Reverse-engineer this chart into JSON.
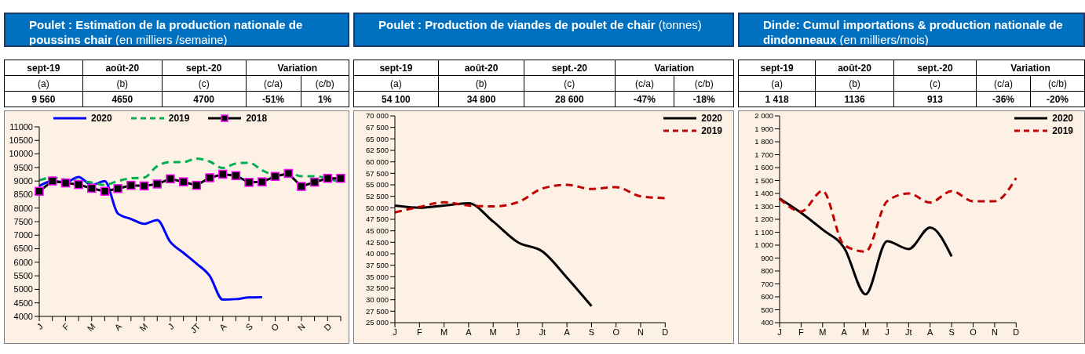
{
  "chart_data": [
    {
      "type": "line",
      "title": "Poulet : Estimation de la production nationale de poussins chair",
      "subtitle": "(en milliers /semaine)",
      "annotations": [
        "sept-19",
        "août-20",
        "sept.-20",
        "Variation",
        "(a)",
        "(b)",
        "(c)",
        "(c/a)",
        "(c/b)",
        "9 560",
        "4650",
        "4700",
        "-51%",
        "1%"
      ],
      "categories": [
        "J",
        null,
        "F",
        null,
        "M",
        null,
        "A",
        null,
        "M",
        null,
        "J",
        null,
        "JT",
        null,
        "A",
        null,
        "S",
        null,
        "O",
        null,
        "N",
        null,
        "D",
        null
      ],
      "series": [
        {
          "name": "2020",
          "color": "#0000ff",
          "line_style": "solid",
          "values": [
            8820,
            9000,
            8950,
            9150,
            8850,
            9000,
            7800,
            7600,
            7420,
            7560,
            6750,
            6350,
            5950,
            5500,
            4620,
            4640,
            4700,
            4710,
            null,
            null,
            null,
            null,
            null,
            null
          ]
        },
        {
          "name": "2019",
          "color": "#00b050",
          "line_style": "dashed",
          "values": [
            9020,
            9130,
            9050,
            9000,
            8950,
            8850,
            9000,
            9100,
            9130,
            9550,
            9700,
            9700,
            9830,
            9720,
            9480,
            9650,
            9680,
            9400,
            9220,
            9300,
            9180,
            9180,
            9100,
            8930
          ]
        },
        {
          "name": "2018",
          "color": "#000000",
          "line_style": "solid",
          "marker": "square",
          "values": [
            8620,
            9000,
            8930,
            8870,
            8730,
            8620,
            8720,
            8840,
            8820,
            8890,
            9080,
            8970,
            8840,
            9120,
            9250,
            9200,
            8950,
            8970,
            9170,
            9280,
            8800,
            8960,
            9100,
            9100
          ]
        }
      ],
      "ylim": [
        4000,
        11000
      ],
      "yticks": [
        4000,
        4500,
        5000,
        5500,
        6000,
        6500,
        7000,
        7500,
        8000,
        8500,
        9000,
        9500,
        10000,
        10500,
        11000
      ],
      "grid": false,
      "legend": "top"
    },
    {
      "type": "line",
      "title": "Poulet : Production de viandes de poulet de chair",
      "subtitle": "(tonnes)",
      "annotations": [
        "sept-19",
        "août-20",
        "sept.-20",
        "Variation",
        "(a)",
        "(b)",
        "(c)",
        "(c/a)",
        "(c/b)",
        "54 100",
        "34 800",
        "28 600",
        "-47%",
        "-18%"
      ],
      "categories": [
        "J",
        "F",
        "M",
        "A",
        "M",
        "J",
        "Jt",
        "A",
        "S",
        "O",
        "N",
        "D"
      ],
      "series": [
        {
          "name": "2020",
          "color": "#000000",
          "line_style": "solid",
          "values": [
            50500,
            50000,
            50500,
            51000,
            47000,
            42500,
            40500,
            34800,
            28600,
            null,
            null,
            null
          ]
        },
        {
          "name": "2019",
          "color": "#c00000",
          "line_style": "dashed",
          "values": [
            49000,
            50200,
            51200,
            50500,
            50300,
            51200,
            54200,
            55000,
            54100,
            54500,
            52500,
            52100
          ]
        }
      ],
      "ylim": [
        25000,
        70000
      ],
      "yticks": [
        {
          "value": 25000,
          "label": "25 000"
        },
        {
          "value": 27500,
          "label": "27 500"
        },
        {
          "value": 30000,
          "label": "30 000"
        },
        {
          "value": 32500,
          "label": "32 500"
        },
        {
          "value": 35000,
          "label": "35 000"
        },
        {
          "value": 37500,
          "label": "37 500"
        },
        {
          "value": 40000,
          "label": "40 000"
        },
        {
          "value": 42500,
          "label": "42 500"
        },
        {
          "value": 45000,
          "label": "45 000"
        },
        {
          "value": 47500,
          "label": "47 500"
        },
        {
          "value": 50000,
          "label": "50 000"
        },
        {
          "value": 52500,
          "label": "52 500"
        },
        {
          "value": 55000,
          "label": "55 000"
        },
        {
          "value": 57500,
          "label": "57 500"
        },
        {
          "value": 60000,
          "label": "60 000"
        },
        {
          "value": 62500,
          "label": "62 500"
        },
        {
          "value": 65000,
          "label": "65 000"
        },
        {
          "value": 67500,
          "label": "67 500"
        },
        {
          "value": 70000,
          "label": "70 000"
        }
      ],
      "grid": false,
      "legend": "top right"
    },
    {
      "type": "line",
      "title": "Dinde: Cumul importations & production nationale de dindonneaux",
      "subtitle": "(en milliers/mois)",
      "annotations": [
        "sept-19",
        "août-20",
        "sept.-20",
        "Variation",
        "(a)",
        "(b)",
        "(c)",
        "(c/a)",
        "(c/b)",
        "1 418",
        "1136",
        "913",
        "-36%",
        "-20%"
      ],
      "categories": [
        "J",
        "F",
        "M",
        "A",
        "M",
        "J",
        "Jt",
        "A",
        "S",
        "O",
        "N",
        "D"
      ],
      "series": [
        {
          "name": "2020",
          "color": "#000000",
          "line_style": "solid",
          "values": [
            1360,
            1250,
            1120,
            980,
            620,
            1030,
            970,
            1136,
            913,
            null,
            null,
            null
          ]
        },
        {
          "name": "2019",
          "color": "#c00000",
          "line_style": "dashed",
          "values": [
            1360,
            1260,
            1420,
            1000,
            950,
            1340,
            1400,
            1330,
            1418,
            1340,
            1340,
            1520
          ]
        }
      ],
      "ylim": [
        400,
        2000
      ],
      "yticks": [
        400,
        500,
        600,
        700,
        800,
        900,
        {
          "value": 1000,
          "label": "1 000"
        },
        {
          "value": 1100,
          "label": "1 100"
        },
        {
          "value": 1200,
          "label": "1 200"
        },
        {
          "value": 1300,
          "label": "1 300"
        },
        {
          "value": 1400,
          "label": "1 400"
        },
        {
          "value": 1500,
          "label": "1 500"
        },
        {
          "value": 1600,
          "label": "1 600"
        },
        {
          "value": 1700,
          "label": "1 700"
        },
        {
          "value": 1800,
          "label": "1 800"
        },
        {
          "value": 1900,
          "label": "1 900"
        },
        {
          "value": 2000,
          "label": "2 000"
        }
      ],
      "grid": false,
      "legend": "top right"
    }
  ]
}
